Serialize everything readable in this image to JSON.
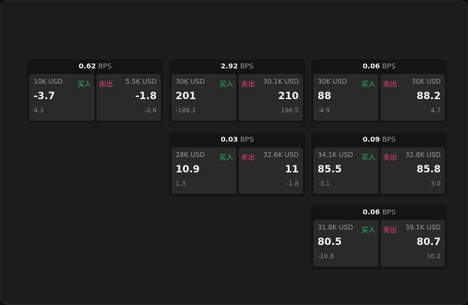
{
  "unit": "BPS",
  "buy_label": "买入",
  "sell_label": "卖出",
  "colors": {
    "buy": "#2fb36a",
    "sell": "#e0457b"
  },
  "widgets": [
    {
      "col": 1,
      "row": 1,
      "spread": "0.62",
      "buy": {
        "size": "10K USD",
        "price": "-3.7",
        "change": "4.3"
      },
      "sell": {
        "size": "5.5K USD",
        "price": "-1.8",
        "change": "-2.6"
      }
    },
    {
      "col": 2,
      "row": 1,
      "spread": "2.92",
      "buy": {
        "size": "30K USD",
        "price": "201",
        "change": "-188.1"
      },
      "sell": {
        "size": "30.1K USD",
        "price": "210",
        "change": "196.5"
      }
    },
    {
      "col": 3,
      "row": 1,
      "spread": "0.06",
      "buy": {
        "size": "30K USD",
        "price": "88",
        "change": "-4.9"
      },
      "sell": {
        "size": "30K USD",
        "price": "88.2",
        "change": "4.7"
      }
    },
    {
      "col": 2,
      "row": 2,
      "spread": "0.03",
      "buy": {
        "size": "28K USD",
        "price": "10.9",
        "change": "1.3"
      },
      "sell": {
        "size": "32.6K USD",
        "price": "11",
        "change": "-1.8"
      }
    },
    {
      "col": 3,
      "row": 2,
      "spread": "0.09",
      "buy": {
        "size": "34.1K USD",
        "price": "85.5",
        "change": "-3.1"
      },
      "sell": {
        "size": "32.8K USD",
        "price": "85.8",
        "change": "3.0"
      }
    },
    {
      "col": 3,
      "row": 3,
      "spread": "0.06",
      "buy": {
        "size": "31.8K USD",
        "price": "80.5",
        "change": "-10.8"
      },
      "sell": {
        "size": "39.1K USD",
        "price": "80.7",
        "change": "10.2"
      }
    }
  ]
}
